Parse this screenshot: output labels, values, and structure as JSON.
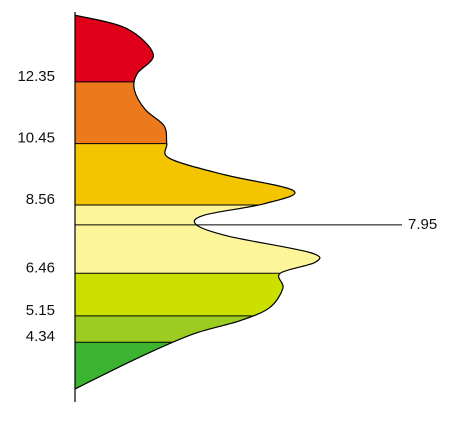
{
  "chart_data": {
    "type": "area",
    "orientation": "vertical-distribution",
    "title": "",
    "xlabel": "",
    "ylabel": "",
    "y_ticks": [
      "12.35",
      "10.45",
      "8.56",
      "6.46",
      "5.15",
      "4.34"
    ],
    "y_tick_values": [
      12.35,
      10.45,
      8.56,
      6.46,
      5.15,
      4.34
    ],
    "y_range": [
      2.5,
      14.5
    ],
    "x_range": [
      0,
      1
    ],
    "grid": false,
    "bands": [
      {
        "from": 12.35,
        "to": 14.4,
        "color": "#e0001a"
      },
      {
        "from": 10.45,
        "to": 12.35,
        "color": "#ec7a1c"
      },
      {
        "from": 8.56,
        "to": 10.45,
        "color": "#f2c500"
      },
      {
        "from": 6.46,
        "to": 8.56,
        "color": "#fdf59a"
      },
      {
        "from": 5.15,
        "to": 6.46,
        "color": "#cce000"
      },
      {
        "from": 4.34,
        "to": 5.15,
        "color": "#9ccc22"
      },
      {
        "from": 2.5,
        "to": 4.34,
        "color": "#3cb431"
      }
    ],
    "band_boundaries": [
      12.35,
      10.45,
      8.56,
      7.95,
      6.46,
      5.15,
      4.34
    ],
    "density_curve": [
      {
        "y": 14.4,
        "x": 0.0
      },
      {
        "y": 14.0,
        "x": 0.19
      },
      {
        "y": 13.2,
        "x": 0.29
      },
      {
        "y": 12.6,
        "x": 0.23
      },
      {
        "y": 12.1,
        "x": 0.22
      },
      {
        "y": 11.5,
        "x": 0.26
      },
      {
        "y": 11.0,
        "x": 0.33
      },
      {
        "y": 10.45,
        "x": 0.34
      },
      {
        "y": 10.0,
        "x": 0.35
      },
      {
        "y": 9.5,
        "x": 0.55
      },
      {
        "y": 9.0,
        "x": 0.81
      },
      {
        "y": 8.6,
        "x": 0.7
      },
      {
        "y": 8.25,
        "x": 0.48
      },
      {
        "y": 7.95,
        "x": 0.45
      },
      {
        "y": 7.6,
        "x": 0.57
      },
      {
        "y": 7.1,
        "x": 0.87
      },
      {
        "y": 6.8,
        "x": 0.89
      },
      {
        "y": 6.46,
        "x": 0.76
      },
      {
        "y": 6.0,
        "x": 0.77
      },
      {
        "y": 5.4,
        "x": 0.72
      },
      {
        "y": 5.0,
        "x": 0.61
      },
      {
        "y": 4.6,
        "x": 0.44
      },
      {
        "y": 4.0,
        "x": 0.27
      },
      {
        "y": 3.4,
        "x": 0.12
      },
      {
        "y": 2.9,
        "x": 0.0
      }
    ],
    "marker": {
      "value": 7.95,
      "label": "7.95"
    }
  }
}
